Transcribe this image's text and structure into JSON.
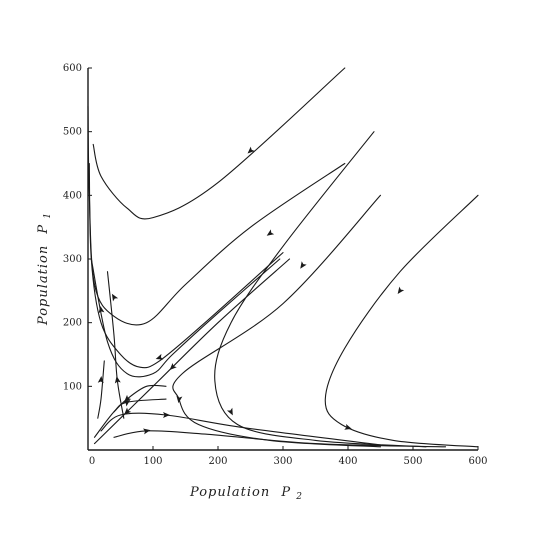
{
  "diagram": {
    "x_axis": {
      "label_prefix": "Population",
      "label_var": "P",
      "label_sub": "2",
      "ticks": [
        "0",
        "100",
        "200",
        "300",
        "400",
        "500",
        "600"
      ]
    },
    "y_axis": {
      "label_prefix": "Population",
      "label_var": "P",
      "label_sub": "1",
      "ticks": [
        "0",
        "100",
        "200",
        "300",
        "400",
        "500",
        "600"
      ]
    },
    "range": {
      "x": [
        0,
        600
      ],
      "y": [
        0,
        600
      ]
    },
    "trajectories": [
      {
        "name": "outer-u-top",
        "points": [
          [
            395,
            600
          ],
          [
            200,
            420
          ],
          [
            100,
            365
          ],
          [
            60,
            380
          ],
          [
            20,
            430
          ],
          [
            8,
            480
          ]
        ],
        "arrows": [
          [
            250,
            470
          ]
        ]
      },
      {
        "name": "u-middle",
        "points": [
          [
            395,
            450
          ],
          [
            250,
            350
          ],
          [
            150,
            260
          ],
          [
            90,
            200
          ],
          [
            40,
            210
          ],
          [
            10,
            260
          ],
          [
            2,
            400
          ],
          [
            0,
            540
          ]
        ],
        "arrows": [
          [
            280,
            340
          ],
          [
            40,
            240
          ]
        ]
      },
      {
        "name": "near-saddle-upper",
        "points": [
          [
            300,
            310
          ],
          [
            180,
            200
          ],
          [
            110,
            140
          ],
          [
            80,
            130
          ],
          [
            50,
            150
          ],
          [
            20,
            200
          ],
          [
            5,
            300
          ],
          [
            2,
            450
          ]
        ],
        "arrows": [
          [
            110,
            145
          ],
          [
            20,
            220
          ]
        ]
      },
      {
        "name": "separatrix-long",
        "points": [
          [
            295,
            300
          ],
          [
            200,
            215
          ],
          [
            130,
            150
          ],
          [
            100,
            120
          ],
          [
            60,
            120
          ],
          [
            30,
            170
          ],
          [
            5,
            300
          ]
        ],
        "arrows": []
      },
      {
        "name": "separatrix-diagonal",
        "points": [
          [
            310,
            300
          ],
          [
            200,
            200
          ],
          [
            100,
            100
          ],
          [
            10,
            10
          ]
        ],
        "arrows": [
          [
            130,
            130
          ],
          [
            60,
            60
          ]
        ]
      },
      {
        "name": "c-curve-mid",
        "points": [
          [
            440,
            500
          ],
          [
            300,
            320
          ],
          [
            220,
            200
          ],
          [
            195,
            110
          ],
          [
            230,
            40
          ],
          [
            350,
            15
          ],
          [
            520,
            5
          ]
        ],
        "arrows": [
          [
            330,
            290
          ],
          [
            220,
            60
          ]
        ]
      },
      {
        "name": "c-curve-outer",
        "points": [
          [
            600,
            400
          ],
          [
            480,
            280
          ],
          [
            395,
            160
          ],
          [
            365,
            80
          ],
          [
            390,
            40
          ],
          [
            470,
            15
          ],
          [
            600,
            5
          ]
        ],
        "arrows": [
          [
            480,
            250
          ],
          [
            400,
            35
          ]
        ]
      },
      {
        "name": "c-curve-inner",
        "points": [
          [
            450,
            400
          ],
          [
            300,
            230
          ],
          [
            145,
            120
          ],
          [
            140,
            80
          ],
          [
            170,
            40
          ],
          [
            280,
            15
          ],
          [
            450,
            5
          ]
        ],
        "arrows": [
          [
            140,
            80
          ]
        ]
      },
      {
        "name": "inner-loop-1",
        "points": [
          [
            120,
            100
          ],
          [
            90,
            100
          ],
          [
            60,
            80
          ],
          [
            40,
            60
          ]
        ],
        "arrows": [
          [
            60,
            80
          ]
        ]
      },
      {
        "name": "inner-loop-2",
        "points": [
          [
            15,
            50
          ],
          [
            20,
            80
          ],
          [
            25,
            140
          ]
        ],
        "arrows": [
          [
            20,
            110
          ]
        ]
      },
      {
        "name": "inner-loop-3",
        "points": [
          [
            20,
            30
          ],
          [
            50,
            55
          ],
          [
            120,
            55
          ],
          [
            240,
            35
          ],
          [
            450,
            8
          ]
        ],
        "arrows": [
          [
            120,
            55
          ]
        ]
      },
      {
        "name": "inner-loop-4",
        "points": [
          [
            40,
            20
          ],
          [
            90,
            30
          ],
          [
            180,
            25
          ],
          [
            350,
            10
          ],
          [
            550,
            5
          ]
        ],
        "arrows": [
          [
            90,
            30
          ]
        ]
      },
      {
        "name": "inner-loop-5",
        "points": [
          [
            55,
            50
          ],
          [
            45,
            110
          ],
          [
            40,
            180
          ],
          [
            30,
            280
          ]
        ],
        "arrows": [
          [
            45,
            110
          ]
        ]
      },
      {
        "name": "inner-loop-6",
        "points": [
          [
            10,
            20
          ],
          [
            40,
            60
          ],
          [
            60,
            75
          ],
          [
            120,
            80
          ]
        ],
        "arrows": [
          [
            60,
            75
          ]
        ]
      }
    ]
  }
}
